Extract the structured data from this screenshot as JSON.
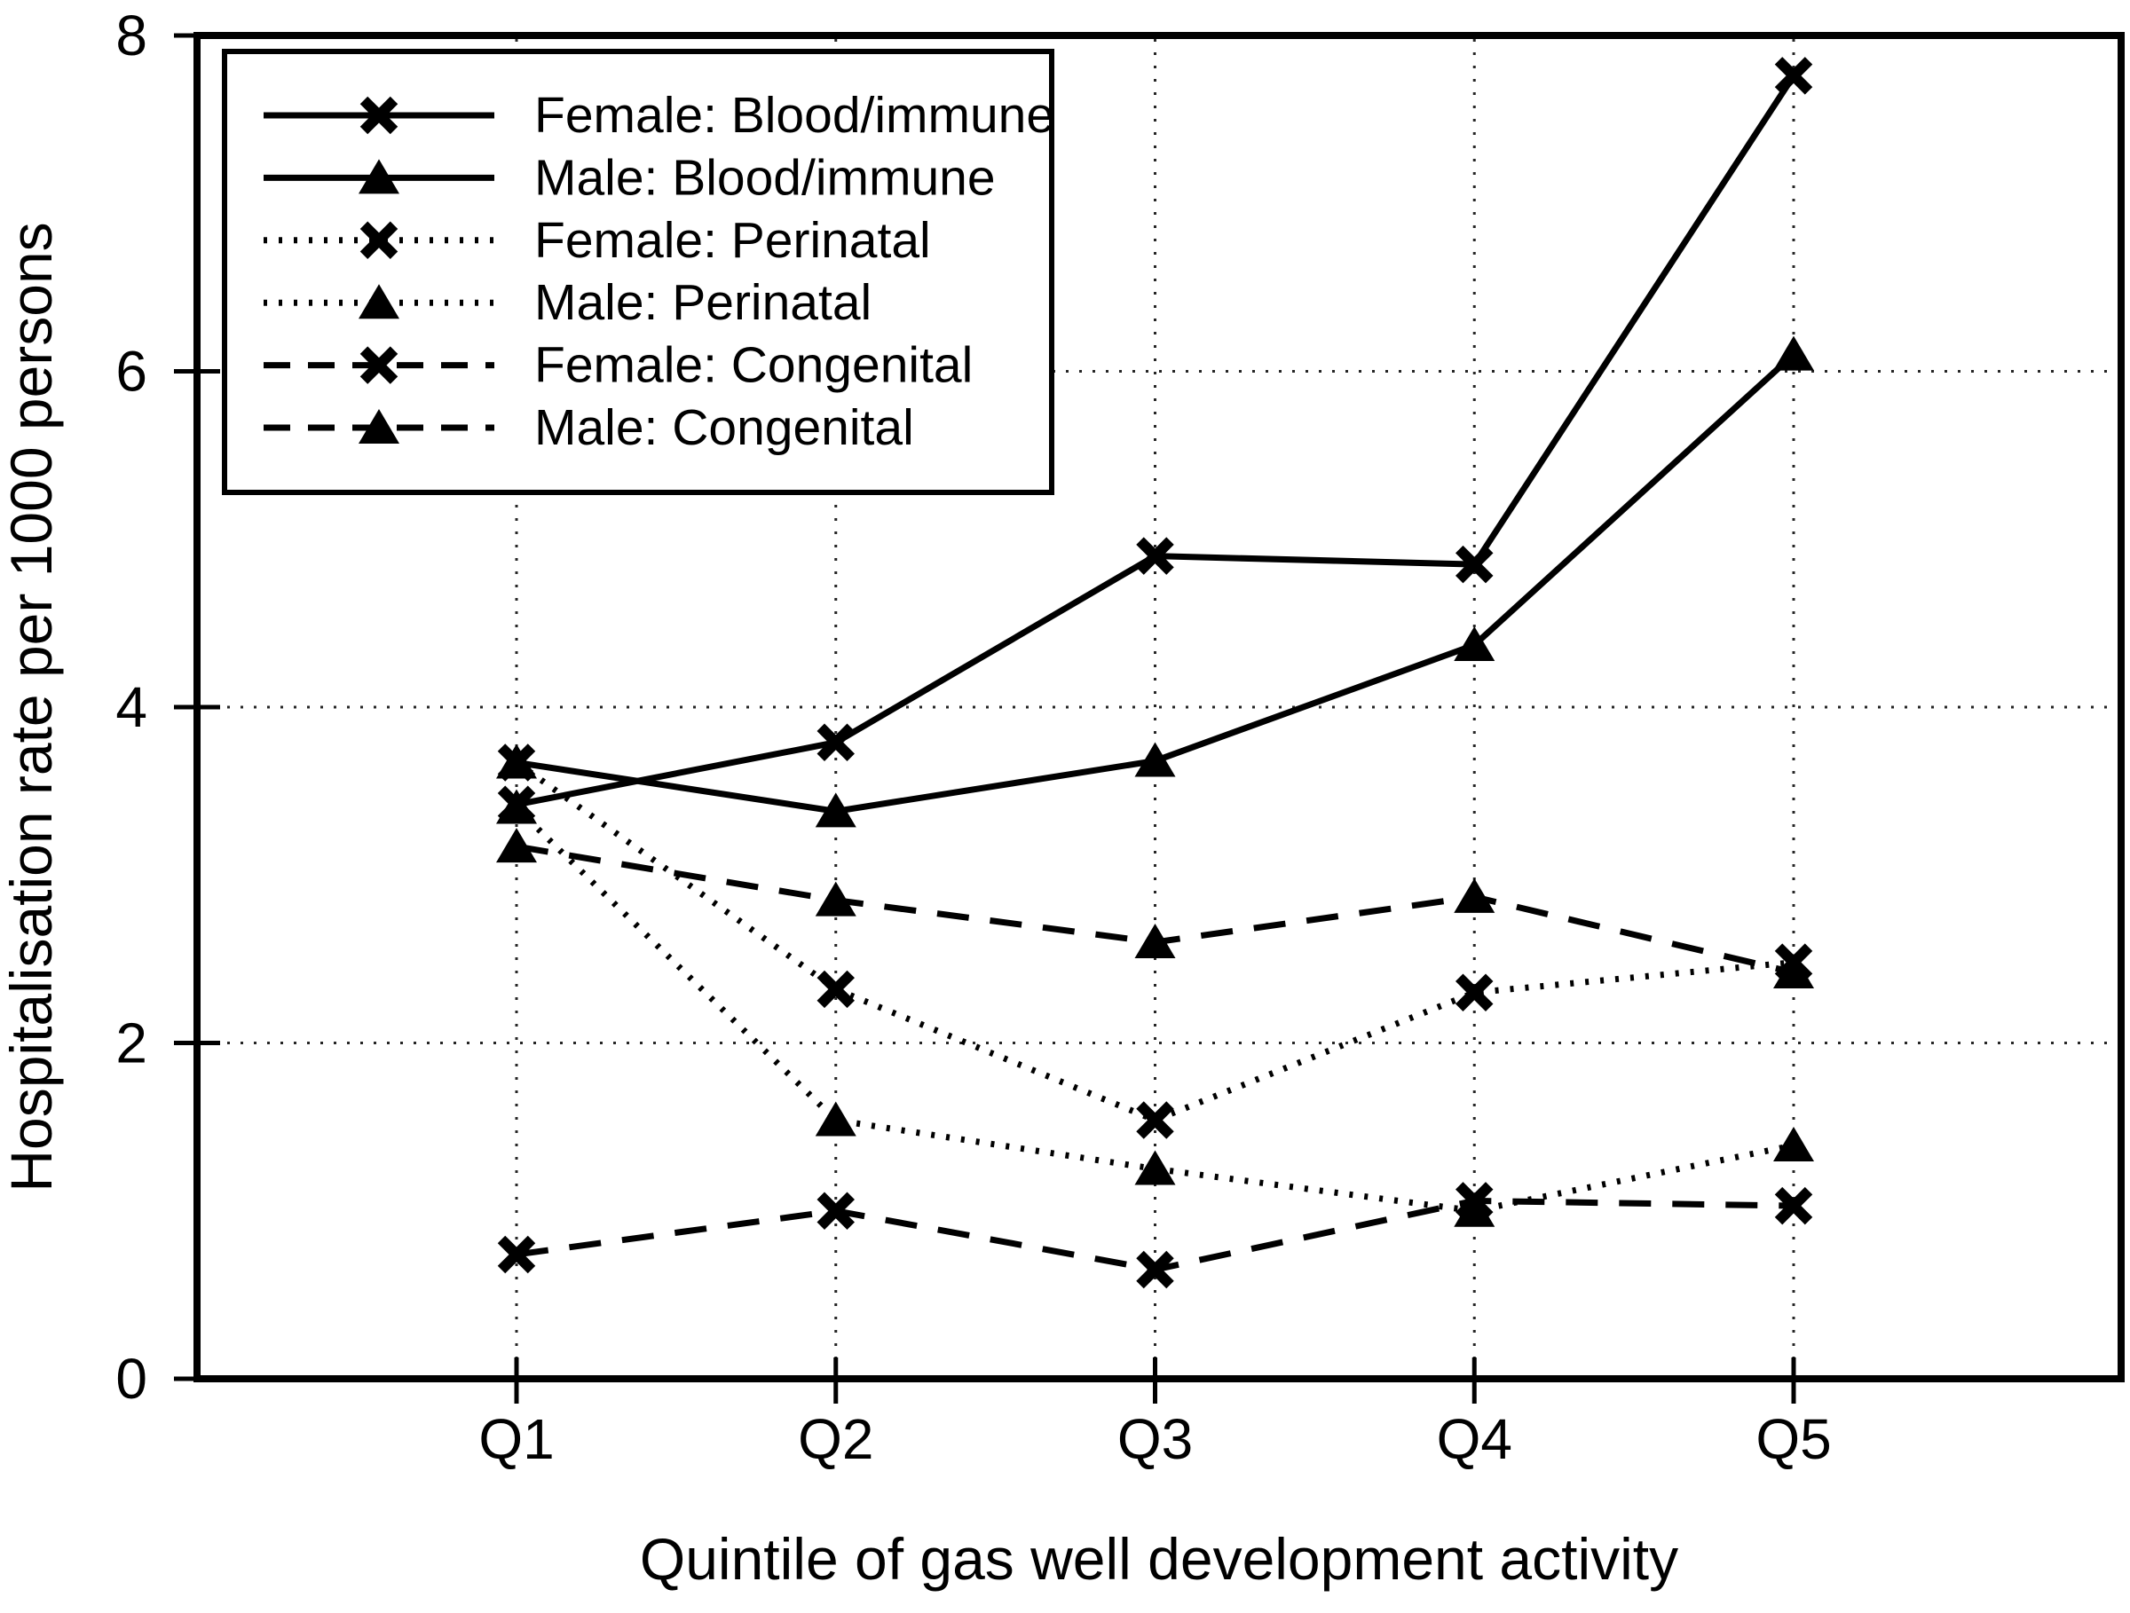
{
  "figure": {
    "background_color": "#ffffff",
    "foreground_color": "#000000"
  },
  "chart_data": {
    "type": "line",
    "title": "",
    "xlabel": "Quintile of gas well development activity",
    "ylabel": "Hospitalisation rate per 1000 persons",
    "categories": [
      "Q1",
      "Q2",
      "Q3",
      "Q4",
      "Q5"
    ],
    "ylim": [
      0,
      8
    ],
    "y_ticks": [
      0,
      2,
      4,
      6,
      8
    ],
    "grid": {
      "horizontal_at": [
        2,
        4,
        6
      ],
      "vertical_at_categories": true,
      "style": "dotted"
    },
    "legend_position": "upper-left-inside",
    "legend_entries": [
      "Female: Blood/immune",
      "Male: Blood/immune",
      "Female: Perinatal",
      "Male: Perinatal",
      "Female: Congenital",
      "Male: Congenital"
    ],
    "series": [
      {
        "name": "Female: Blood/immune",
        "line": "solid",
        "marker": "x",
        "values": [
          3.42,
          3.79,
          4.9,
          4.85,
          7.76
        ]
      },
      {
        "name": "Male: Blood/immune",
        "line": "solid",
        "marker": "triangle",
        "values": [
          3.67,
          3.38,
          3.68,
          4.37,
          6.1
        ]
      },
      {
        "name": "Female: Perinatal",
        "line": "dotted",
        "marker": "x",
        "values": [
          3.67,
          2.32,
          1.54,
          2.3,
          2.48
        ]
      },
      {
        "name": "Male: Perinatal",
        "line": "dotted",
        "marker": "triangle",
        "values": [
          3.4,
          1.54,
          1.25,
          1.0,
          1.39
        ]
      },
      {
        "name": "Female: Congenital",
        "line": "dashed",
        "marker": "x",
        "values": [
          0.74,
          1.0,
          0.65,
          1.06,
          1.03
        ]
      },
      {
        "name": "Male: Congenital",
        "line": "dashed",
        "marker": "triangle",
        "values": [
          3.17,
          2.85,
          2.6,
          2.87,
          2.42
        ]
      }
    ]
  }
}
